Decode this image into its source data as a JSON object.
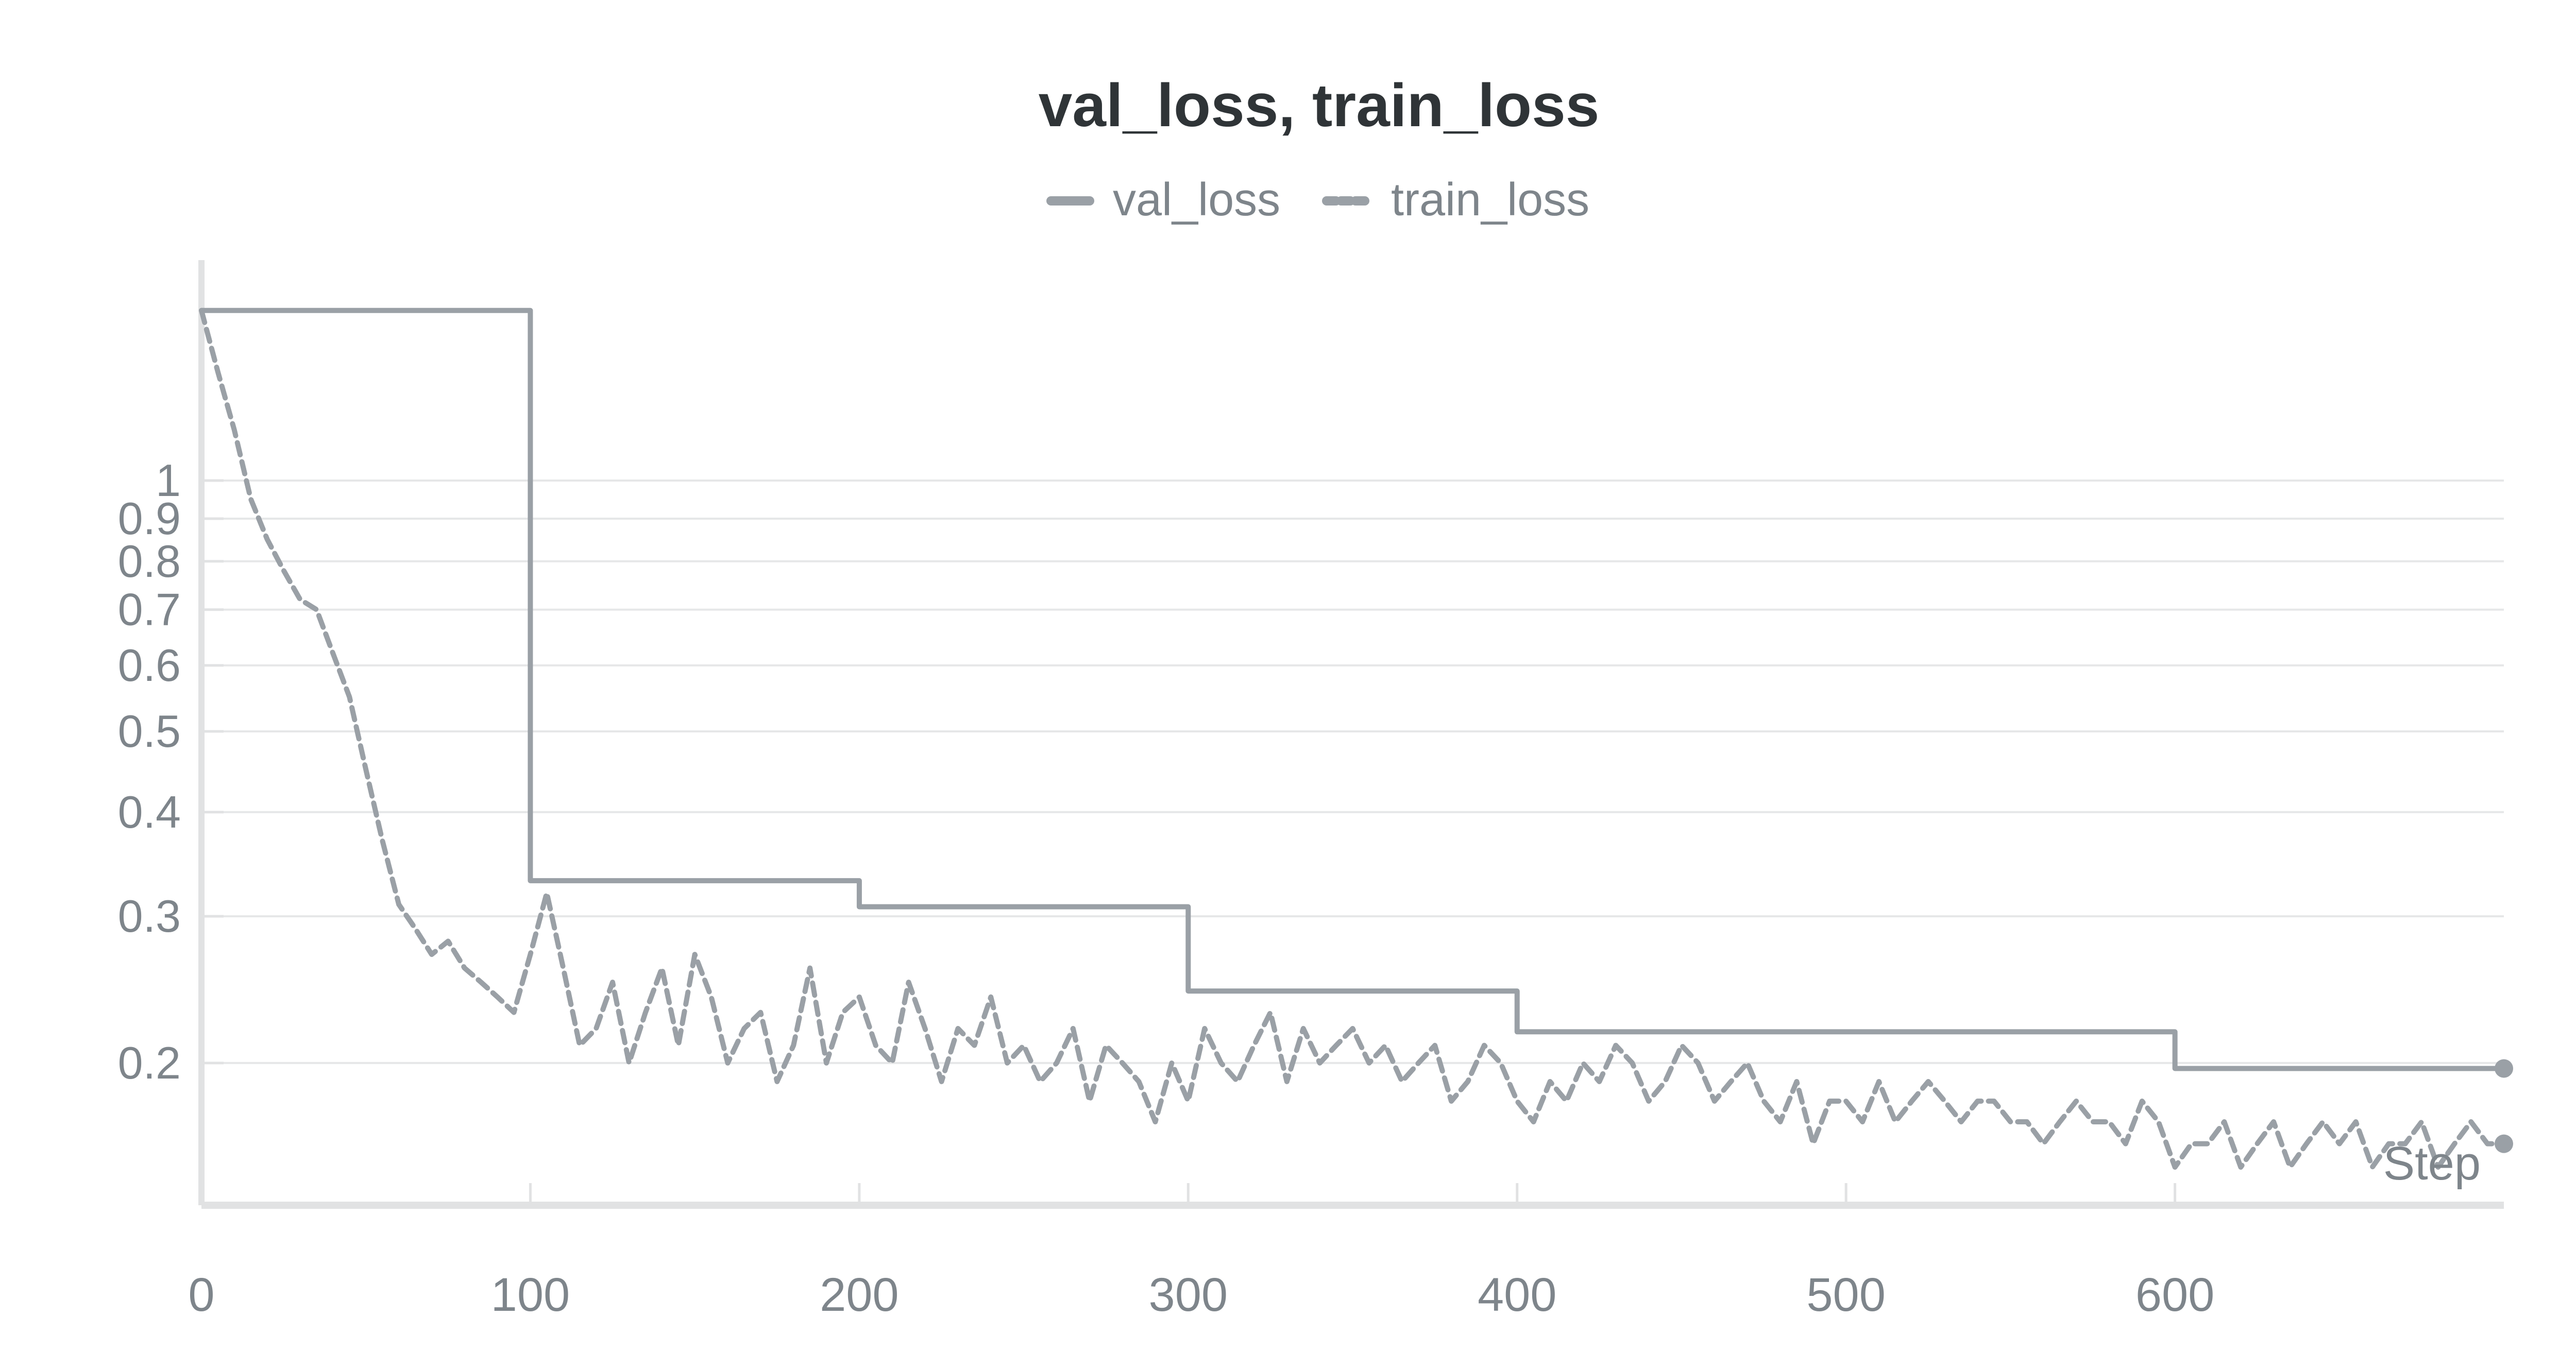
{
  "chart_data": {
    "type": "line",
    "title": "val_loss, train_loss",
    "xlabel": "Step",
    "ylabel": "",
    "xlim": [
      0,
      700
    ],
    "ylim": [
      0.135,
      1.8
    ],
    "yscale": "log",
    "grid": true,
    "legend_position": "top",
    "x_ticks": [
      0,
      100,
      200,
      300,
      400,
      500,
      600
    ],
    "x_tick_labels": [
      "0",
      "100",
      "200",
      "300",
      "400",
      "500",
      "600"
    ],
    "y_ticks": [
      1,
      0.9,
      0.8,
      0.7,
      0.6,
      0.5,
      0.4,
      0.3,
      0.2
    ],
    "y_tick_labels": [
      "1",
      "0.9",
      "0.8",
      "0.7",
      "0.6",
      "0.5",
      "0.4",
      "0.3",
      "0.2"
    ],
    "series": [
      {
        "name": "val_loss",
        "style": "solid",
        "color": "#9aa0a6",
        "x": [
          0,
          100,
          100,
          200,
          200,
          300,
          300,
          400,
          400,
          600,
          600,
          700
        ],
        "y": [
          1.6,
          1.6,
          0.331,
          0.331,
          0.308,
          0.308,
          0.244,
          0.244,
          0.218,
          0.218,
          0.197,
          0.197
        ]
      },
      {
        "name": "train_loss",
        "style": "dashed",
        "color": "#9aa0a6",
        "x": [
          0,
          5,
          10,
          15,
          20,
          25,
          30,
          35,
          40,
          45,
          50,
          55,
          60,
          65,
          70,
          75,
          80,
          85,
          90,
          95,
          100,
          105,
          110,
          115,
          120,
          125,
          130,
          135,
          140,
          145,
          150,
          155,
          160,
          165,
          170,
          175,
          180,
          185,
          190,
          195,
          200,
          205,
          210,
          215,
          220,
          225,
          230,
          235,
          240,
          245,
          250,
          255,
          260,
          265,
          270,
          275,
          280,
          285,
          290,
          295,
          300,
          305,
          310,
          315,
          320,
          325,
          330,
          335,
          340,
          345,
          350,
          355,
          360,
          365,
          370,
          375,
          380,
          385,
          390,
          395,
          400,
          405,
          410,
          415,
          420,
          425,
          430,
          435,
          440,
          445,
          450,
          455,
          460,
          465,
          470,
          475,
          480,
          485,
          490,
          495,
          500,
          505,
          510,
          515,
          520,
          525,
          530,
          535,
          540,
          545,
          550,
          555,
          560,
          565,
          570,
          575,
          580,
          585,
          590,
          595,
          600,
          605,
          610,
          615,
          620,
          625,
          630,
          635,
          640,
          645,
          650,
          655,
          660,
          665,
          670,
          675,
          680,
          685,
          690,
          695,
          700
        ],
        "y": [
          1.6,
          1.35,
          1.15,
          0.95,
          0.85,
          0.78,
          0.72,
          0.7,
          0.62,
          0.55,
          0.45,
          0.37,
          0.31,
          0.29,
          0.27,
          0.28,
          0.26,
          0.25,
          0.24,
          0.23,
          0.27,
          0.32,
          0.26,
          0.21,
          0.22,
          0.25,
          0.2,
          0.23,
          0.26,
          0.21,
          0.27,
          0.24,
          0.2,
          0.22,
          0.23,
          0.19,
          0.21,
          0.26,
          0.2,
          0.23,
          0.24,
          0.21,
          0.2,
          0.25,
          0.22,
          0.19,
          0.22,
          0.21,
          0.24,
          0.2,
          0.21,
          0.19,
          0.2,
          0.22,
          0.18,
          0.21,
          0.2,
          0.19,
          0.17,
          0.2,
          0.18,
          0.22,
          0.2,
          0.19,
          0.21,
          0.23,
          0.19,
          0.22,
          0.2,
          0.21,
          0.22,
          0.2,
          0.21,
          0.19,
          0.2,
          0.21,
          0.18,
          0.19,
          0.21,
          0.2,
          0.18,
          0.17,
          0.19,
          0.18,
          0.2,
          0.19,
          0.21,
          0.2,
          0.18,
          0.19,
          0.21,
          0.2,
          0.18,
          0.19,
          0.2,
          0.18,
          0.17,
          0.19,
          0.16,
          0.18,
          0.18,
          0.17,
          0.19,
          0.17,
          0.18,
          0.19,
          0.18,
          0.17,
          0.18,
          0.18,
          0.17,
          0.17,
          0.16,
          0.17,
          0.18,
          0.17,
          0.17,
          0.16,
          0.18,
          0.17,
          0.15,
          0.16,
          0.16,
          0.17,
          0.15,
          0.16,
          0.17,
          0.15,
          0.16,
          0.17,
          0.16,
          0.17,
          0.15,
          0.16,
          0.16,
          0.17,
          0.15,
          0.16,
          0.17,
          0.16,
          0.16
        ]
      }
    ]
  }
}
